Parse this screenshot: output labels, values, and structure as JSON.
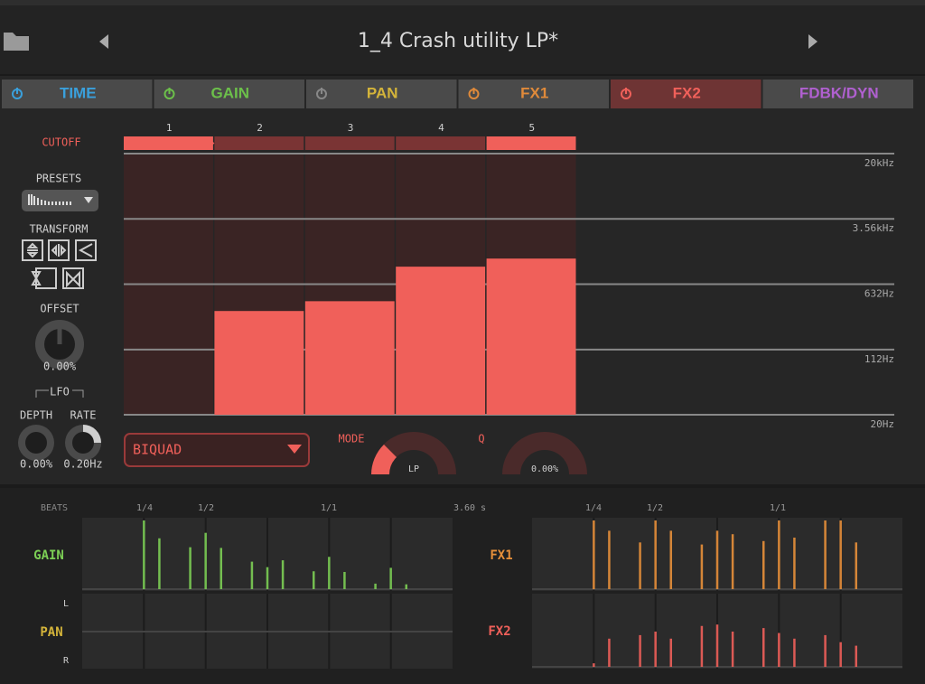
{
  "header": {
    "title": "1_4 Crash utility LP*"
  },
  "tabs": [
    {
      "label": "TIME",
      "color": "#3aa0dc"
    },
    {
      "label": "GAIN",
      "color": "#6cc04a"
    },
    {
      "label": "PAN",
      "color": "#d4b43a"
    },
    {
      "label": "FX1",
      "color": "#e08a3a"
    },
    {
      "label": "FX2",
      "color": "#f0605a"
    },
    {
      "label": "FDBK/DYN",
      "color": "#b060d0"
    }
  ],
  "active_tab": 4,
  "cutoff": {
    "label": "CUTOFF",
    "steps": [
      "1",
      "2",
      "3",
      "4",
      "5"
    ],
    "values": [
      20,
      311,
      403,
      1005,
      1245
    ],
    "color": "#f0605a",
    "log_scale": true,
    "ylim": [
      20,
      20000
    ],
    "yticks": [
      {
        "value": 20,
        "label": "20Hz"
      },
      {
        "value": 112,
        "label": "112Hz"
      },
      {
        "value": 632,
        "label": "632Hz"
      },
      {
        "value": 3560,
        "label": "3.56kHz"
      },
      {
        "value": 20000,
        "label": "20kHz"
      }
    ]
  },
  "sidebar": {
    "presets": "PRESETS",
    "transform": "TRANSFORM",
    "offset": {
      "label": "OFFSET",
      "value": "0.00%"
    },
    "lfo": {
      "label": "LFO",
      "depth": {
        "label": "DEPTH",
        "value": "0.00%"
      },
      "rate": {
        "label": "RATE",
        "value": "0.20Hz"
      }
    }
  },
  "filter": {
    "type": "BIQUAD",
    "mode": {
      "label": "MODE",
      "value": "LP"
    },
    "q": {
      "label": "Q",
      "value": "0.00%"
    }
  },
  "sequencer": {
    "beats": "BEATS",
    "markers": [
      "1/4",
      "1/2",
      "1/1"
    ],
    "length": "3.60 s",
    "lanes": [
      {
        "name": "GAIN",
        "color": "#7ccf55",
        "values": [
          0,
          0,
          0,
          0,
          100,
          74,
          0,
          61,
          82,
          60,
          0,
          40,
          32,
          42,
          0,
          26,
          47,
          25,
          0,
          8,
          31,
          7,
          0,
          0
        ]
      },
      {
        "name": "PAN",
        "color": "#d4b43a",
        "left": "L",
        "right": "R"
      },
      {
        "name": "FX1",
        "color": "#e8903a",
        "values": [
          0,
          0,
          0,
          0,
          100,
          85,
          0,
          68,
          100,
          85,
          0,
          65,
          85,
          80,
          0,
          70,
          100,
          75,
          0,
          100,
          100,
          68,
          0,
          0
        ]
      },
      {
        "name": "FX2",
        "color": "#f0605a",
        "values": [
          0,
          0,
          0,
          0,
          5,
          40,
          0,
          45,
          50,
          40,
          0,
          58,
          60,
          50,
          0,
          55,
          48,
          40,
          0,
          45,
          35,
          30,
          0,
          0
        ]
      }
    ]
  }
}
